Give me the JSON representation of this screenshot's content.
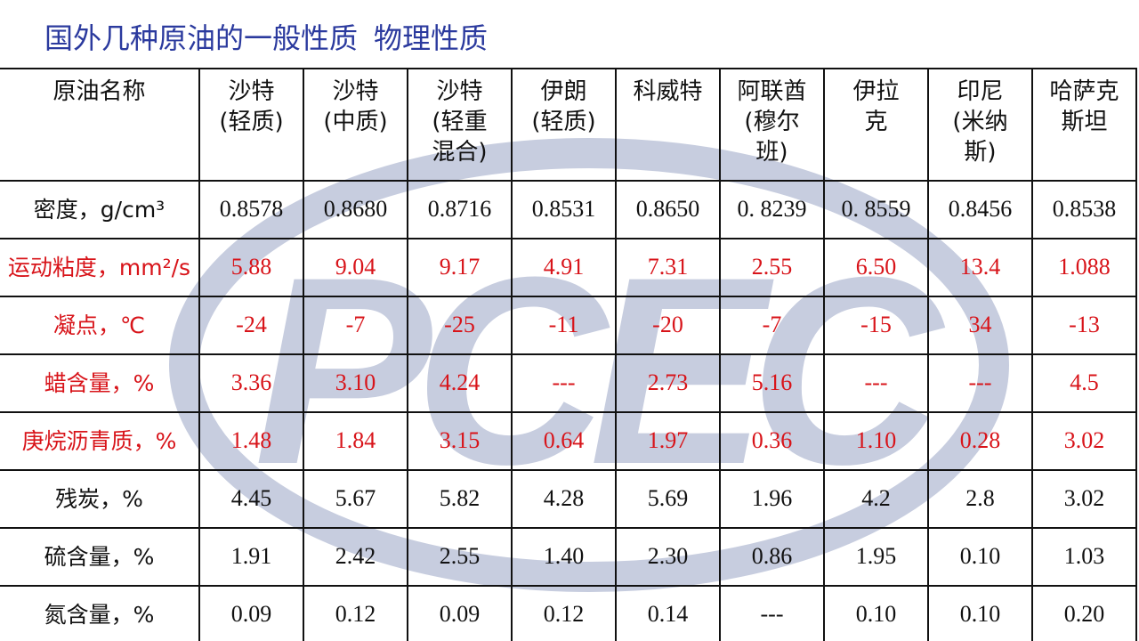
{
  "title": {
    "part1": "国外几种原油的一般性质",
    "part2": "物理性质"
  },
  "colors": {
    "title": "#2b3a9e",
    "highlight_rows": "#d8141a",
    "watermark": "#c7cddf"
  },
  "watermark_text": "PCEC",
  "table": {
    "header": {
      "label": "原油名称",
      "crudes": [
        [
          "沙特",
          "(轻质)"
        ],
        [
          "沙特",
          "(中质)"
        ],
        [
          "沙特",
          "(轻重",
          "混合)"
        ],
        [
          "伊朗",
          "(轻质)"
        ],
        [
          "科威特"
        ],
        [
          "阿联酋",
          "(穆尔",
          "班)"
        ],
        [
          "伊拉",
          "克"
        ],
        [
          "印尼",
          "(米纳",
          "斯)"
        ],
        [
          "哈萨克",
          "斯坦"
        ]
      ]
    },
    "rows": [
      {
        "label": "密度，g/cm³",
        "values": [
          "0.8578",
          "0.8680",
          "0.8716",
          "0.8531",
          "0.8650",
          "0. 8239",
          "0. 8559",
          "0.8456",
          "0.8538"
        ],
        "highlight": false
      },
      {
        "label": "运动粘度，mm²/s",
        "values": [
          "5.88",
          "9.04",
          "9.17",
          "4.91",
          "7.31",
          "2.55",
          "6.50",
          "13.4",
          "1.088"
        ],
        "highlight": true
      },
      {
        "label": "凝点，℃",
        "values": [
          "-24",
          "-7",
          "-25",
          "-11",
          "-20",
          "-7",
          "-15",
          "34",
          "-13"
        ],
        "highlight": true
      },
      {
        "label": "蜡含量，%",
        "values": [
          "3.36",
          "3.10",
          "4.24",
          "---",
          "2.73",
          "5.16",
          "---",
          "---",
          "4.5"
        ],
        "highlight": true
      },
      {
        "label": "庚烷沥青质，%",
        "values": [
          "1.48",
          "1.84",
          "3.15",
          "0.64",
          "1.97",
          "0.36",
          "1.10",
          "0.28",
          "3.02"
        ],
        "highlight": true
      },
      {
        "label": "残炭，%",
        "values": [
          "4.45",
          "5.67",
          "5.82",
          "4.28",
          "5.69",
          "1.96",
          "4.2",
          "2.8",
          "3.02"
        ],
        "highlight": false
      },
      {
        "label": "硫含量，%",
        "values": [
          "1.91",
          "2.42",
          "2.55",
          "1.40",
          "2.30",
          "0.86",
          "1.95",
          "0.10",
          "1.03"
        ],
        "highlight": false
      },
      {
        "label": "氮含量，%",
        "values": [
          "0.09",
          "0.12",
          "0.09",
          "0.12",
          "0.14",
          "---",
          "0.10",
          "0.10",
          "0.20"
        ],
        "highlight": false
      }
    ]
  }
}
